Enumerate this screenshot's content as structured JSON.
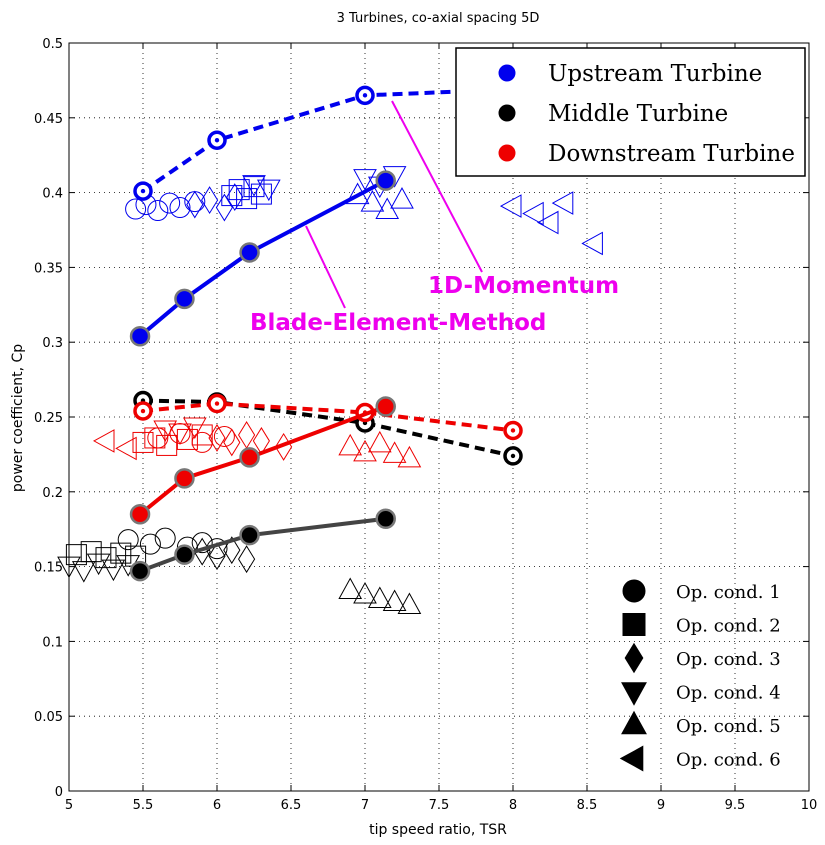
{
  "chart_data": {
    "type": "scatter",
    "title": "3 Turbines, co-axial spacing 5D",
    "xlabel": "tip speed ratio, TSR",
    "ylabel": "power coefficient, Cp",
    "xlim": [
      5,
      10
    ],
    "ylim": [
      0,
      0.5
    ],
    "x_ticks": [
      "5",
      "5.5",
      "6",
      "6.5",
      "7",
      "7.5",
      "8",
      "8.5",
      "9",
      "9.5",
      "10"
    ],
    "y_ticks": [
      "0",
      "0.05",
      "0.1",
      "0.15",
      "0.2",
      "0.25",
      "0.3",
      "0.35",
      "0.4",
      "0.45",
      "0.5"
    ],
    "grid": true,
    "legend_position": "top-right",
    "colors": {
      "upstream": "#0000ee",
      "middle": "#000000",
      "middle_line": "#444444",
      "downstream": "#ee0000",
      "annotation": "#ee00ee"
    },
    "legend": [
      {
        "label": "Upstream Turbine",
        "color": "#0000ee"
      },
      {
        "label": "Middle Turbine",
        "color": "#000000"
      },
      {
        "label": "Downstream Turbine",
        "color": "#ee0000"
      }
    ],
    "op_legend": [
      {
        "label": "Op. cond. 1",
        "marker": "circle"
      },
      {
        "label": "Op. cond. 2",
        "marker": "square"
      },
      {
        "label": "Op. cond. 3",
        "marker": "diamond"
      },
      {
        "label": "Op. cond. 4",
        "marker": "triangle-down"
      },
      {
        "label": "Op. cond. 5",
        "marker": "triangle-up"
      },
      {
        "label": "Op. cond. 6",
        "marker": "triangle-left"
      }
    ],
    "annotations": [
      {
        "text": "1D-Momentum",
        "color": "#ee00ee"
      },
      {
        "text": "Blade-Element-Method",
        "color": "#ee00ee"
      }
    ],
    "series": [
      {
        "turbine": "upstream",
        "method": "1D-Momentum",
        "style": "dashed",
        "color": "#0000ee",
        "x": [
          5.5,
          6.0,
          7.0,
          8.0
        ],
        "y": [
          0.401,
          0.435,
          0.465,
          0.469
        ]
      },
      {
        "turbine": "upstream",
        "method": "Blade-Element-Method",
        "style": "solid",
        "color": "#0000ee",
        "x": [
          5.48,
          5.78,
          6.22,
          7.14
        ],
        "y": [
          0.304,
          0.329,
          0.36,
          0.408
        ]
      },
      {
        "turbine": "middle",
        "method": "1D-Momentum",
        "style": "dashed",
        "color": "#000000",
        "x": [
          5.5,
          6.0,
          7.0,
          8.0
        ],
        "y": [
          0.261,
          0.26,
          0.246,
          0.224
        ]
      },
      {
        "turbine": "middle",
        "method": "Blade-Element-Method",
        "style": "solid",
        "color": "#444444",
        "x": [
          5.48,
          5.78,
          6.22,
          7.14
        ],
        "y": [
          0.147,
          0.158,
          0.171,
          0.182
        ]
      },
      {
        "turbine": "downstream",
        "method": "1D-Momentum",
        "style": "dashed",
        "color": "#ee0000",
        "x": [
          5.5,
          6.0,
          7.0,
          8.0
        ],
        "y": [
          0.254,
          0.259,
          0.253,
          0.241
        ]
      },
      {
        "turbine": "downstream",
        "method": "Blade-Element-Method",
        "style": "solid",
        "color": "#ee0000",
        "x": [
          5.48,
          5.78,
          6.22,
          7.14
        ],
        "y": [
          0.185,
          0.209,
          0.223,
          0.257
        ]
      }
    ],
    "measurements": [
      {
        "turbine": "upstream",
        "color": "#0000ee",
        "op": 1,
        "marker": "circle",
        "x": [
          5.45,
          5.52,
          5.6,
          5.68,
          5.75,
          5.85
        ],
        "y": [
          0.389,
          0.392,
          0.388,
          0.393,
          0.39,
          0.394
        ]
      },
      {
        "turbine": "upstream",
        "color": "#0000ee",
        "op": 2,
        "marker": "square",
        "x": [
          6.1,
          6.15,
          6.2,
          6.25,
          6.3
        ],
        "y": [
          0.398,
          0.402,
          0.396,
          0.404,
          0.399
        ]
      },
      {
        "turbine": "upstream",
        "color": "#0000ee",
        "op": 3,
        "marker": "diamond",
        "x": [
          5.85,
          5.95,
          6.05,
          6.12
        ],
        "y": [
          0.392,
          0.395,
          0.39,
          0.397
        ]
      },
      {
        "turbine": "upstream",
        "color": "#0000ee",
        "op": 4,
        "marker": "triangle-down",
        "x": [
          6.25,
          6.35,
          7.0,
          7.1,
          7.2
        ],
        "y": [
          0.406,
          0.403,
          0.41,
          0.405,
          0.412
        ]
      },
      {
        "turbine": "upstream",
        "color": "#0000ee",
        "op": 5,
        "marker": "triangle-up",
        "x": [
          6.95,
          7.05,
          7.15,
          7.25
        ],
        "y": [
          0.398,
          0.393,
          0.388,
          0.395
        ]
      },
      {
        "turbine": "upstream",
        "color": "#0000ee",
        "op": 6,
        "marker": "triangle-left",
        "x": [
          8.0,
          8.15,
          8.25,
          8.35,
          8.55
        ],
        "y": [
          0.391,
          0.386,
          0.38,
          0.393,
          0.366
        ]
      },
      {
        "turbine": "middle",
        "color": "#000000",
        "op": 1,
        "marker": "circle",
        "x": [
          5.4,
          5.55,
          5.65,
          5.8,
          5.9,
          6.0
        ],
        "y": [
          0.168,
          0.165,
          0.169,
          0.163,
          0.166,
          0.162
        ]
      },
      {
        "turbine": "middle",
        "color": "#000000",
        "op": 2,
        "marker": "square",
        "x": [
          5.05,
          5.15,
          5.25,
          5.35,
          5.45
        ],
        "y": [
          0.158,
          0.16,
          0.156,
          0.159,
          0.157
        ]
      },
      {
        "turbine": "middle",
        "color": "#000000",
        "op": 3,
        "marker": "diamond",
        "x": [
          5.9,
          6.0,
          6.1,
          6.2
        ],
        "y": [
          0.16,
          0.157,
          0.161,
          0.155
        ]
      },
      {
        "turbine": "middle",
        "color": "#000000",
        "op": 4,
        "marker": "triangle-down",
        "x": [
          5.0,
          5.1,
          5.2,
          5.3,
          5.4
        ],
        "y": [
          0.151,
          0.148,
          0.153,
          0.149,
          0.152
        ]
      },
      {
        "turbine": "middle",
        "color": "#000000",
        "op": 5,
        "marker": "triangle-up",
        "x": [
          6.9,
          7.0,
          7.1,
          7.2,
          7.3
        ],
        "y": [
          0.134,
          0.131,
          0.128,
          0.126,
          0.124
        ]
      },
      {
        "turbine": "downstream",
        "color": "#ee0000",
        "op": 1,
        "marker": "circle",
        "x": [
          5.6,
          5.75,
          5.9,
          6.05
        ],
        "y": [
          0.236,
          0.239,
          0.233,
          0.237
        ]
      },
      {
        "turbine": "downstream",
        "color": "#ee0000",
        "op": 2,
        "marker": "square",
        "x": [
          5.5,
          5.58,
          5.66,
          5.8,
          5.9
        ],
        "y": [
          0.233,
          0.236,
          0.231,
          0.235,
          0.238
        ]
      },
      {
        "turbine": "downstream",
        "color": "#ee0000",
        "op": 3,
        "marker": "diamond",
        "x": [
          6.0,
          6.1,
          6.2,
          6.3,
          6.45
        ],
        "y": [
          0.236,
          0.233,
          0.238,
          0.234,
          0.23
        ]
      },
      {
        "turbine": "downstream",
        "color": "#ee0000",
        "op": 4,
        "marker": "triangle-down",
        "x": [
          5.65,
          5.75,
          5.85
        ],
        "y": [
          0.242,
          0.24,
          0.244
        ]
      },
      {
        "turbine": "downstream",
        "color": "#ee0000",
        "op": 5,
        "marker": "triangle-up",
        "x": [
          6.9,
          7.0,
          7.1,
          7.2,
          7.3
        ],
        "y": [
          0.23,
          0.226,
          0.232,
          0.225,
          0.222
        ]
      },
      {
        "turbine": "downstream",
        "color": "#ee0000",
        "op": 6,
        "marker": "triangle-left",
        "x": [
          5.25,
          5.4
        ],
        "y": [
          0.234,
          0.229
        ]
      }
    ]
  }
}
